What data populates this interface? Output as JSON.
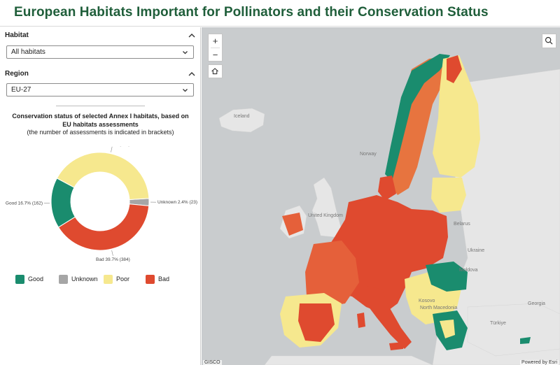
{
  "header": {
    "title": "European Habitats Important for Pollinators and their Conservation Status"
  },
  "filters": {
    "habitat": {
      "label": "Habitat",
      "value": "All habitats"
    },
    "region": {
      "label": "Region",
      "value": "EU-27"
    }
  },
  "chart_data": {
    "type": "pie",
    "title": "Conservation status of selected Annex I habitats, based on EU habitats assessments",
    "subtitle": "(the number of assessments is indicated in brackets)",
    "categories": [
      "Good",
      "Unknown",
      "Poor",
      "Bad"
    ],
    "values": [
      16.7,
      2.4,
      41.2,
      39.7
    ],
    "counts": [
      162,
      23,
      399,
      384
    ],
    "data_labels": [
      "Good 16.7% (162)",
      "Unknown 2.4% (23)",
      "Poor 41.2% (399)",
      "Bad 39.7% (384)"
    ],
    "colors": [
      "#1a8c6e",
      "#a6a6a6",
      "#f6e88e",
      "#df4a2f"
    ],
    "legend_position": "bottom",
    "donut": true
  },
  "map": {
    "labels": {
      "iceland": "Iceland",
      "norway": "Norway",
      "uk": "United Kingdom",
      "belarus": "Belarus",
      "ukraine": "Ukraine",
      "moldova": "Moldova",
      "georgia": "Georgia",
      "turkiye": "Türkiye",
      "north_macedonia": "North Macedonia",
      "kosovo": "Kosovo"
    },
    "attribution_left": "GISCO",
    "attribution_right": "Powered by Esri",
    "controls": {
      "zoom_in": "+",
      "zoom_out": "−"
    },
    "colors": {
      "water": "#c9ccce",
      "land": "#e6e6e6"
    }
  }
}
